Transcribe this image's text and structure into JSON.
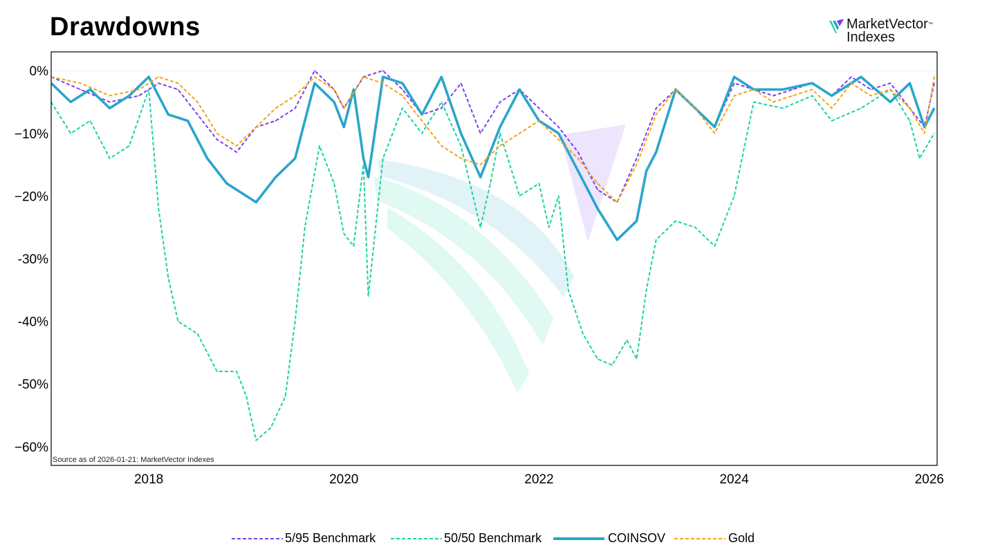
{
  "title": "Drawdowns",
  "logo": {
    "text_line1": "MarketVector",
    "text_line2": "Indexes",
    "tm": "™"
  },
  "source_note": "Source as of 2026-01-21: MarketVector Indexes",
  "colors": {
    "bench595": "#7a3ff0",
    "bench5050": "#19d3a0",
    "coinsov": "#2aa5cb",
    "gold": "#f1a316"
  },
  "chart_data": {
    "type": "line",
    "title": "Drawdowns",
    "xlabel": "",
    "ylabel": "",
    "x_ticks": [
      "2018",
      "2020",
      "2022",
      "2024",
      "2026"
    ],
    "y_ticks": [
      "0%",
      "−10%",
      "−20%",
      "-30%",
      "-40%",
      "-50%",
      "−60%"
    ],
    "y_tick_values": [
      0,
      -10,
      -20,
      -30,
      -40,
      -50,
      -60
    ],
    "xlim": [
      2017.0,
      2026.08
    ],
    "ylim": [
      -63,
      3
    ],
    "grid": false,
    "legend_position": "bottom",
    "series": [
      {
        "name": "5/95 Benchmark",
        "style": "dashed",
        "color": "#7a3ff0",
        "x": [
          2017.0,
          2017.3,
          2017.6,
          2017.9,
          2018.1,
          2018.3,
          2018.5,
          2018.7,
          2018.9,
          2019.1,
          2019.3,
          2019.5,
          2019.7,
          2019.9,
          2020.0,
          2020.2,
          2020.4,
          2020.6,
          2020.8,
          2021.0,
          2021.2,
          2021.4,
          2021.6,
          2021.8,
          2022.0,
          2022.2,
          2022.4,
          2022.6,
          2022.8,
          2023.0,
          2023.2,
          2023.4,
          2023.6,
          2023.8,
          2024.0,
          2024.2,
          2024.4,
          2024.6,
          2024.8,
          2025.0,
          2025.2,
          2025.4,
          2025.6,
          2025.8,
          2025.95,
          2026.05
        ],
        "y": [
          -1,
          -3,
          -5,
          -4,
          -2,
          -3,
          -7,
          -11,
          -13,
          -9,
          -8,
          -6,
          0,
          -3,
          -6,
          -1,
          0,
          -3,
          -7,
          -6,
          -2,
          -10,
          -5,
          -3,
          -6,
          -9,
          -13,
          -19,
          -21,
          -14,
          -6,
          -3,
          -6,
          -9,
          -2,
          -3,
          -4,
          -3,
          -2,
          -4,
          -1,
          -3,
          -2,
          -6,
          -9,
          -2
        ]
      },
      {
        "name": "50/50 Benchmark",
        "style": "dashed",
        "color": "#19d3a0",
        "x": [
          2017.0,
          2017.2,
          2017.4,
          2017.6,
          2017.8,
          2018.0,
          2018.1,
          2018.2,
          2018.3,
          2018.5,
          2018.7,
          2018.9,
          2019.0,
          2019.1,
          2019.25,
          2019.4,
          2019.5,
          2019.6,
          2019.75,
          2019.9,
          2020.0,
          2020.1,
          2020.2,
          2020.25,
          2020.4,
          2020.6,
          2020.8,
          2021.0,
          2021.2,
          2021.4,
          2021.5,
          2021.6,
          2021.8,
          2022.0,
          2022.1,
          2022.2,
          2022.3,
          2022.45,
          2022.6,
          2022.75,
          2022.9,
          2023.0,
          2023.1,
          2023.2,
          2023.4,
          2023.6,
          2023.8,
          2024.0,
          2024.2,
          2024.5,
          2024.8,
          2025.0,
          2025.3,
          2025.6,
          2025.8,
          2025.9,
          2026.05
        ],
        "y": [
          -5,
          -10,
          -8,
          -14,
          -12,
          -3,
          -22,
          -33,
          -40,
          -42,
          -48,
          -48,
          -52,
          -59,
          -57,
          -52,
          -40,
          -25,
          -12,
          -18,
          -26,
          -28,
          -15,
          -36,
          -14,
          -6,
          -10,
          -5,
          -12,
          -25,
          -18,
          -10,
          -20,
          -18,
          -25,
          -20,
          -35,
          -42,
          -46,
          -47,
          -43,
          -46,
          -35,
          -27,
          -24,
          -25,
          -28,
          -20,
          -5,
          -6,
          -4,
          -8,
          -6,
          -3,
          -8,
          -14,
          -10
        ]
      },
      {
        "name": "COINSOV",
        "style": "solid",
        "color": "#2aa5cb",
        "x": [
          2017.0,
          2017.2,
          2017.4,
          2017.6,
          2017.8,
          2018.0,
          2018.2,
          2018.4,
          2018.6,
          2018.8,
          2019.0,
          2019.1,
          2019.3,
          2019.5,
          2019.7,
          2019.9,
          2020.0,
          2020.1,
          2020.2,
          2020.25,
          2020.4,
          2020.6,
          2020.8,
          2021.0,
          2021.2,
          2021.4,
          2021.6,
          2021.8,
          2022.0,
          2022.2,
          2022.4,
          2022.6,
          2022.8,
          2023.0,
          2023.1,
          2023.2,
          2023.4,
          2023.6,
          2023.8,
          2024.0,
          2024.2,
          2024.5,
          2024.8,
          2025.0,
          2025.3,
          2025.6,
          2025.8,
          2025.95,
          2026.05
        ],
        "y": [
          -2,
          -5,
          -3,
          -6,
          -4,
          -1,
          -7,
          -8,
          -14,
          -18,
          -20,
          -21,
          -17,
          -14,
          -2,
          -5,
          -9,
          -3,
          -14,
          -17,
          -1,
          -2,
          -7,
          -1,
          -10,
          -17,
          -9,
          -3,
          -8,
          -10,
          -16,
          -22,
          -27,
          -24,
          -16,
          -13,
          -3,
          -6,
          -9,
          -1,
          -3,
          -3,
          -2,
          -4,
          -1,
          -5,
          -2,
          -9,
          -6
        ]
      },
      {
        "name": "Gold",
        "style": "dashed",
        "color": "#f1a316",
        "x": [
          2017.0,
          2017.3,
          2017.6,
          2017.9,
          2018.1,
          2018.3,
          2018.5,
          2018.7,
          2018.9,
          2019.1,
          2019.3,
          2019.5,
          2019.7,
          2019.9,
          2020.0,
          2020.2,
          2020.4,
          2020.6,
          2020.8,
          2021.0,
          2021.2,
          2021.4,
          2021.6,
          2021.8,
          2022.0,
          2022.2,
          2022.4,
          2022.6,
          2022.8,
          2023.0,
          2023.2,
          2023.4,
          2023.6,
          2023.8,
          2024.0,
          2024.2,
          2024.4,
          2024.6,
          2024.8,
          2025.0,
          2025.2,
          2025.4,
          2025.6,
          2025.8,
          2025.95,
          2026.05
        ],
        "y": [
          -1,
          -2,
          -4,
          -3,
          -1,
          -2,
          -5,
          -10,
          -12,
          -9,
          -6,
          -4,
          -1,
          -3,
          -6,
          -1,
          -2,
          -4,
          -8,
          -12,
          -14,
          -15,
          -12,
          -10,
          -8,
          -11,
          -14,
          -18,
          -21,
          -15,
          -7,
          -3,
          -6,
          -10,
          -4,
          -3,
          -5,
          -4,
          -3,
          -6,
          -2,
          -4,
          -3,
          -6,
          -10,
          -1
        ]
      }
    ]
  },
  "legend": [
    {
      "label": "5/95 Benchmark",
      "color": "#7a3ff0",
      "style": "dashed"
    },
    {
      "label": "50/50 Benchmark",
      "color": "#19d3a0",
      "style": "dashed"
    },
    {
      "label": "COINSOV",
      "color": "#2aa5cb",
      "style": "solid"
    },
    {
      "label": "Gold",
      "color": "#f1a316",
      "style": "dashed"
    }
  ]
}
